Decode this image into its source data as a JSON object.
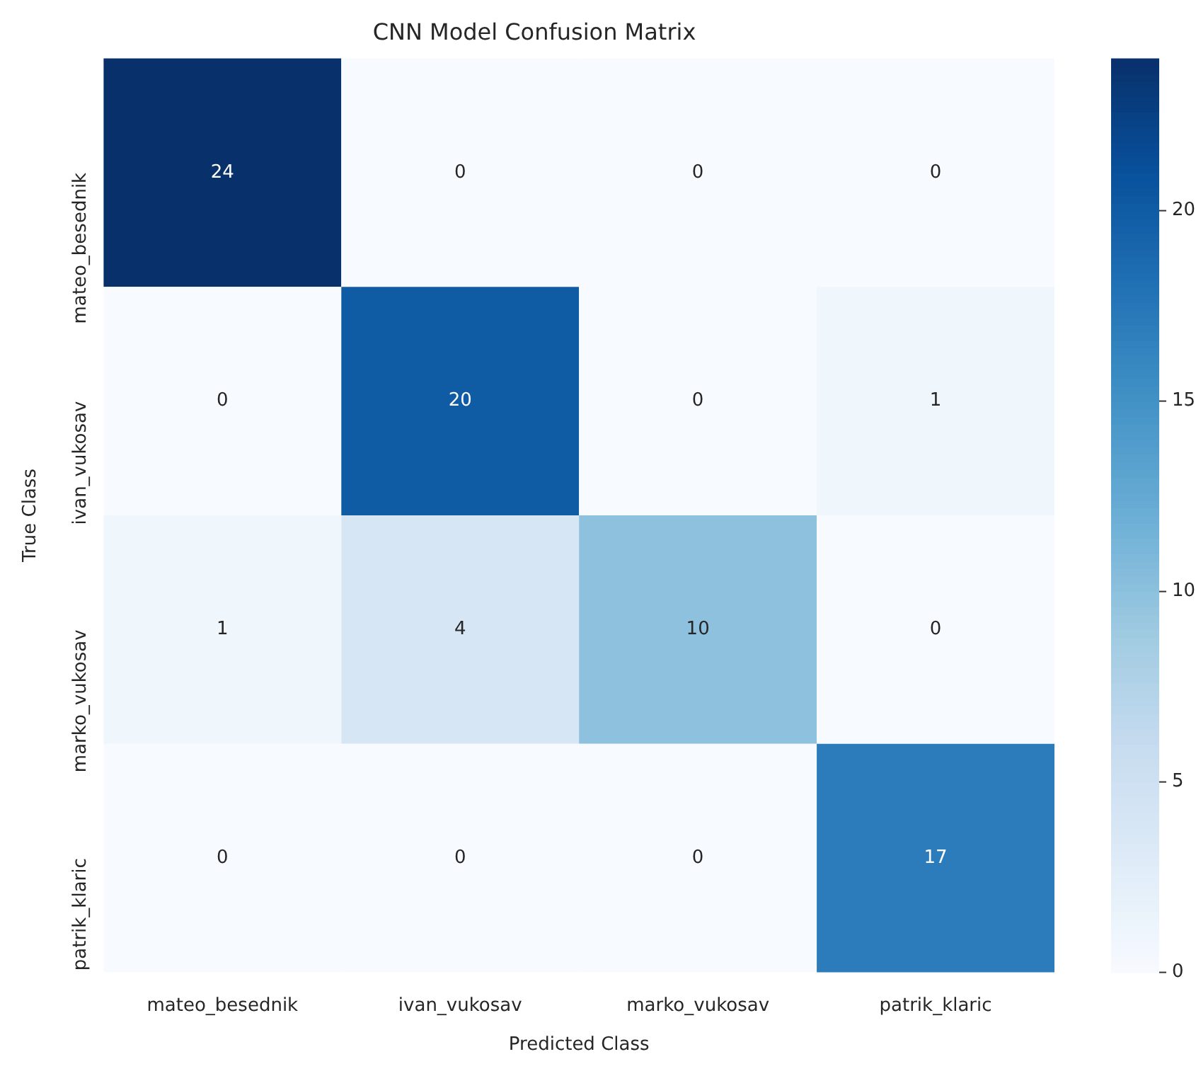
{
  "chart_data": {
    "type": "heatmap",
    "title": "CNN Model Confusion Matrix",
    "xlabel": "Predicted Class",
    "ylabel": "True Class",
    "categories": [
      "mateo_besednik",
      "ivan_vukosav",
      "marko_vukosav",
      "patrik_klaric"
    ],
    "y_categories": [
      "mateo_besednik",
      "ivan_vukosav",
      "marko_vukosav",
      "patrik_klaric"
    ],
    "cells": [
      [
        24,
        0,
        0,
        0
      ],
      [
        0,
        20,
        0,
        1
      ],
      [
        1,
        4,
        10,
        0
      ],
      [
        0,
        0,
        0,
        17
      ]
    ],
    "clim": [
      0,
      24
    ],
    "cticks": [
      0,
      5,
      10,
      15,
      20
    ],
    "data_labels": true,
    "grid": false,
    "legend": false
  }
}
